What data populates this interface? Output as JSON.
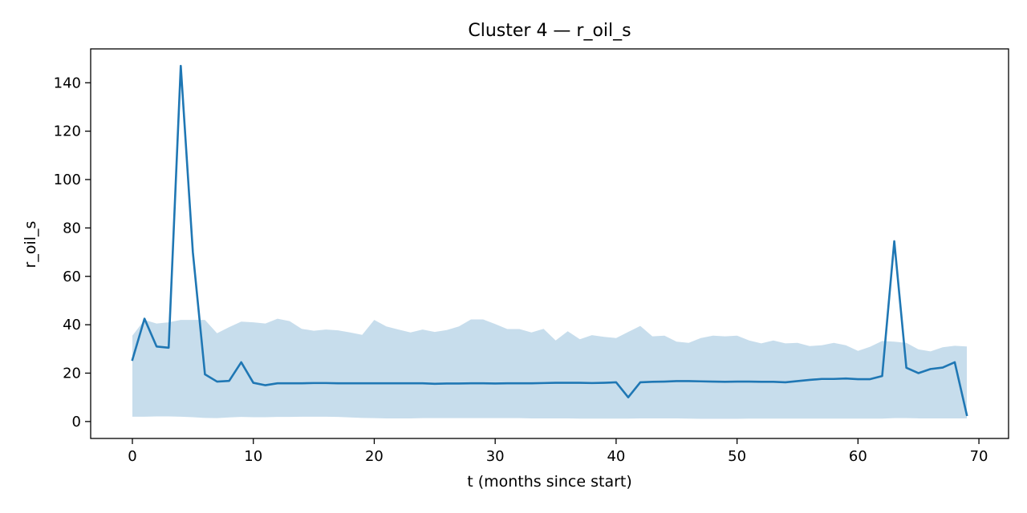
{
  "chart_data": {
    "type": "line",
    "title": "Cluster 4 — r_oil_s",
    "xlabel": "t (months since start)",
    "ylabel": "r_oil_s",
    "xlim": [
      -3.45,
      72.45
    ],
    "ylim": [
      -7.0,
      154.0
    ],
    "grid": false,
    "xticks": [
      0,
      10,
      20,
      30,
      40,
      50,
      60,
      70
    ],
    "yticks": [
      0,
      20,
      40,
      60,
      80,
      100,
      120,
      140
    ],
    "x": [
      0,
      1,
      2,
      3,
      4,
      5,
      6,
      7,
      8,
      9,
      10,
      11,
      12,
      13,
      14,
      15,
      16,
      17,
      18,
      19,
      20,
      21,
      22,
      23,
      24,
      25,
      26,
      27,
      28,
      29,
      30,
      31,
      32,
      33,
      34,
      35,
      36,
      37,
      38,
      39,
      40,
      41,
      42,
      43,
      44,
      45,
      46,
      47,
      48,
      49,
      50,
      51,
      52,
      53,
      54,
      55,
      56,
      57,
      58,
      59,
      60,
      61,
      62,
      63,
      64,
      65,
      66,
      67,
      68,
      69
    ],
    "series": [
      {
        "values": [
          25.5,
          42.5,
          31,
          30.5,
          147,
          70,
          19.5,
          16.5,
          16.8,
          24.5,
          16,
          15,
          15.8,
          15.8,
          15.8,
          15.9,
          15.9,
          15.8,
          15.8,
          15.8,
          15.8,
          15.8,
          15.8,
          15.8,
          15.8,
          15.6,
          15.7,
          15.7,
          15.8,
          15.8,
          15.7,
          15.8,
          15.8,
          15.8,
          15.9,
          16,
          16,
          16,
          15.9,
          16,
          16.2,
          10,
          16.2,
          16.4,
          16.5,
          16.7,
          16.7,
          16.6,
          16.5,
          16.4,
          16.5,
          16.5,
          16.4,
          16.4,
          16.2,
          16.7,
          17.2,
          17.6,
          17.6,
          17.8,
          17.5,
          17.5,
          18.8,
          74.5,
          22.2,
          20,
          21.7,
          22.3,
          24.5,
          2.7
        ],
        "color": "#1f77b4"
      }
    ],
    "band": {
      "upper": [
        35.5,
        42,
        40.5,
        41,
        42,
        42,
        42,
        36.5,
        39,
        41.3,
        41,
        40.5,
        42.5,
        41.5,
        38.3,
        37.5,
        38,
        37.7,
        36.8,
        35.8,
        42,
        39.3,
        38,
        36.8,
        38,
        37,
        37.8,
        39.3,
        42.2,
        42.2,
        40.3,
        38.2,
        38.2,
        36.8,
        38.3,
        33.5,
        37.3,
        34,
        35.7,
        35,
        34.5,
        37,
        39.5,
        35.2,
        35.5,
        33,
        32.5,
        34.5,
        35.5,
        35.2,
        35.5,
        33.5,
        32.3,
        33.5,
        32.3,
        32.5,
        31.2,
        31.5,
        32.5,
        31.5,
        29.2,
        30.9,
        33.3,
        33,
        32.5,
        29.8,
        29,
        30.7,
        31.3,
        31
      ],
      "lower": [
        2,
        2,
        2.1,
        2.1,
        2,
        1.8,
        1.5,
        1.4,
        1.7,
        1.9,
        1.8,
        1.8,
        1.9,
        1.9,
        2,
        2,
        2,
        1.9,
        1.7,
        1.5,
        1.4,
        1.3,
        1.3,
        1.3,
        1.4,
        1.4,
        1.4,
        1.4,
        1.4,
        1.4,
        1.4,
        1.4,
        1.4,
        1.3,
        1.3,
        1.3,
        1.3,
        1.2,
        1.2,
        1.2,
        1.2,
        1.2,
        1.3,
        1.3,
        1.3,
        1.3,
        1.2,
        1.1,
        1.1,
        1.1,
        1.1,
        1.2,
        1.2,
        1.2,
        1.2,
        1.2,
        1.2,
        1.2,
        1.2,
        1.2,
        1.2,
        1.2,
        1.2,
        1.4,
        1.4,
        1.3,
        1.3,
        1.3,
        1.3,
        1.3
      ],
      "color": "#1f77b4",
      "opacity": 0.25
    }
  }
}
